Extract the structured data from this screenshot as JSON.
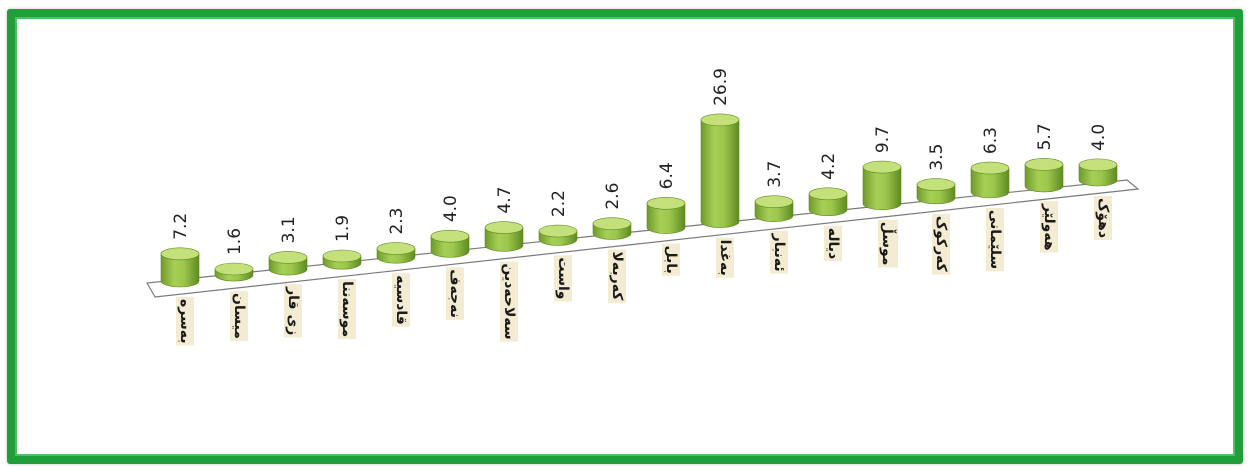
{
  "chart_data": {
    "type": "bar",
    "categories": [
      "بەسرە",
      "میسان",
      "زی قار",
      "موسەننا",
      "قادسیە",
      "نەجەف",
      "سەلاحەدین",
      "واست",
      "کەربەلا",
      "بابل",
      "بەغدا",
      "ئەنبار",
      "دیالە",
      "موسڵ",
      "کەرکوک",
      "سلێمانی",
      "هەولێر",
      "دهۆک"
    ],
    "values": [
      7.2,
      1.6,
      3.1,
      1.9,
      2.3,
      4.0,
      4.7,
      2.2,
      2.6,
      6.4,
      26.9,
      3.7,
      4.2,
      9.7,
      3.5,
      6.3,
      5.7,
      4.0
    ],
    "value_labels": [
      "7.2",
      "1.6",
      "3.1",
      "1.9",
      "2.3",
      "4.0",
      "4.7",
      "2.2",
      "2.6",
      "6.4",
      "26.9",
      "3.7",
      "4.2",
      "9.7",
      "3.5",
      "6.3",
      "5.7",
      "4.0"
    ],
    "colors": {
      "bar_top": "#c4e07a",
      "bar_body": "#8cb83e",
      "bar_dark": "#5f8a22",
      "border": "#1f9e3a",
      "floor_edge": "#7a7a7a"
    },
    "grid": false,
    "legend": "none"
  }
}
